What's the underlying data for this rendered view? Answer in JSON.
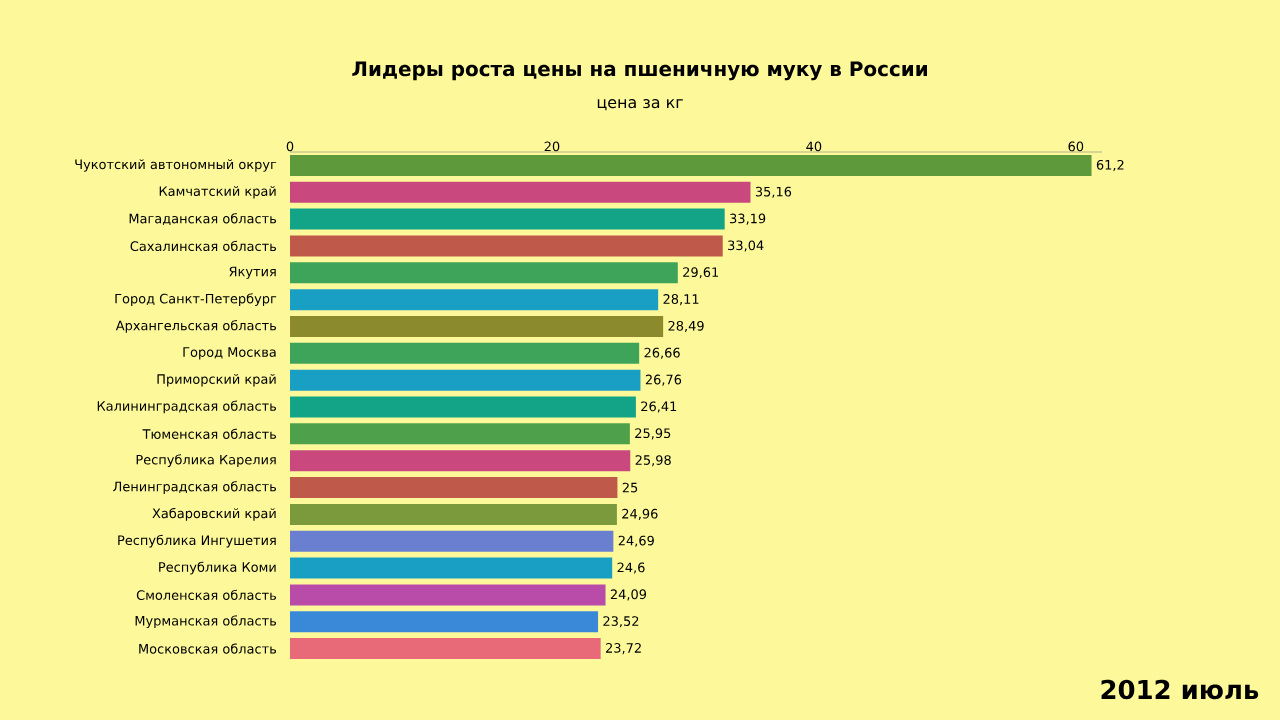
{
  "chart_data": {
    "type": "bar",
    "orientation": "horizontal",
    "title": "Лидеры роста цены на пшеничную муку в России",
    "subtitle": "цена за кг",
    "categories": [
      "Чукотский автономный округ",
      "Камчатский край",
      "Магаданская область",
      "Сахалинская область",
      "Якутия",
      "Город Санкт-Петербург",
      "Архангельская область",
      "Город Москва",
      "Приморский край",
      "Калининградская область",
      "Тюменская область",
      "Республика Карелия",
      "Ленинградская область",
      "Хабаровский край",
      "Республика Ингушетия",
      "Республика Коми",
      "Смоленская область",
      "Мурманская область",
      "Московская область"
    ],
    "values": [
      61.2,
      35.16,
      33.19,
      33.04,
      29.61,
      28.11,
      28.49,
      26.66,
      26.76,
      26.41,
      25.95,
      25.98,
      25,
      24.96,
      24.69,
      24.6,
      24.09,
      23.52,
      23.72
    ],
    "value_labels": [
      "61,2",
      "35,16",
      "33,19",
      "33,04",
      "29,61",
      "28,11",
      "28,49",
      "26,66",
      "26,76",
      "26,41",
      "25,95",
      "25,98",
      "25",
      "24,96",
      "24,69",
      "24,6",
      "24,09",
      "23,52",
      "23,72"
    ],
    "colors": [
      "#5e9a3c",
      "#c9487d",
      "#13a487",
      "#bf5a4b",
      "#3ea45a",
      "#1a9fc4",
      "#8b8a2c",
      "#3ea45a",
      "#1a9fc4",
      "#13a487",
      "#4fa04a",
      "#c9487d",
      "#bf5a4b",
      "#7a9a3c",
      "#6a7fd0",
      "#1a9fc4",
      "#b84ca8",
      "#3a88d8",
      "#e86a78"
    ],
    "xlim": [
      0,
      62
    ],
    "xticks": [
      0,
      20,
      40,
      60
    ],
    "grid": false,
    "annotations": [
      "2012 июль"
    ]
  }
}
